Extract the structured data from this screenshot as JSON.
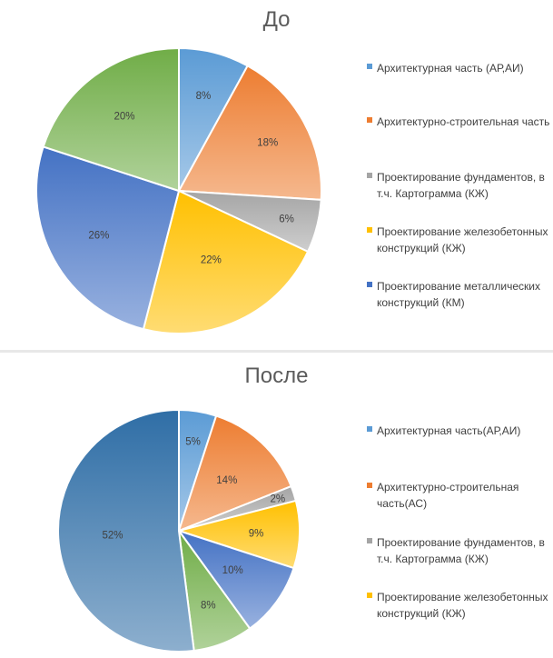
{
  "chart_data": [
    {
      "type": "pie",
      "title": "До",
      "categories": [
        "Архитектурная часть (АР,АИ)",
        "Архитектурно-строительная часть",
        "Проектирование фундаментов, в т.ч. Картограмма (КЖ)",
        "Проектирование железобетонных конструкций (КЖ)",
        "Проектирование металлических конструкций (КМ)",
        ""
      ],
      "values": [
        8,
        18,
        6,
        22,
        26,
        20
      ],
      "data_labels": [
        "8%",
        "18%",
        "6%",
        "22%",
        "26%",
        "20%"
      ],
      "colors": [
        "#5b9bd5",
        "#ed7d31",
        "#a5a5a5",
        "#ffc000",
        "#4472c4",
        "#70ad47"
      ],
      "legend_position": "right"
    },
    {
      "type": "pie",
      "title": "После",
      "categories": [
        "Архитектурная часть(АР,АИ)",
        "Архитектурно-строительная часть(АС)",
        "Проектирование фундаментов, в т.ч. Картограмма (КЖ)",
        "Проектирование железобетонных конструкций (КЖ)",
        "",
        "",
        ""
      ],
      "values": [
        5,
        14,
        2,
        9,
        10,
        8,
        52
      ],
      "data_labels": [
        "5%",
        "14%",
        "2%",
        "9%",
        "10%",
        "8%",
        "52%"
      ],
      "colors": [
        "#5b9bd5",
        "#ed7d31",
        "#a5a5a5",
        "#ffc000",
        "#4472c4",
        "#70ad47",
        "#2f6ea6"
      ],
      "legend_position": "right"
    }
  ]
}
